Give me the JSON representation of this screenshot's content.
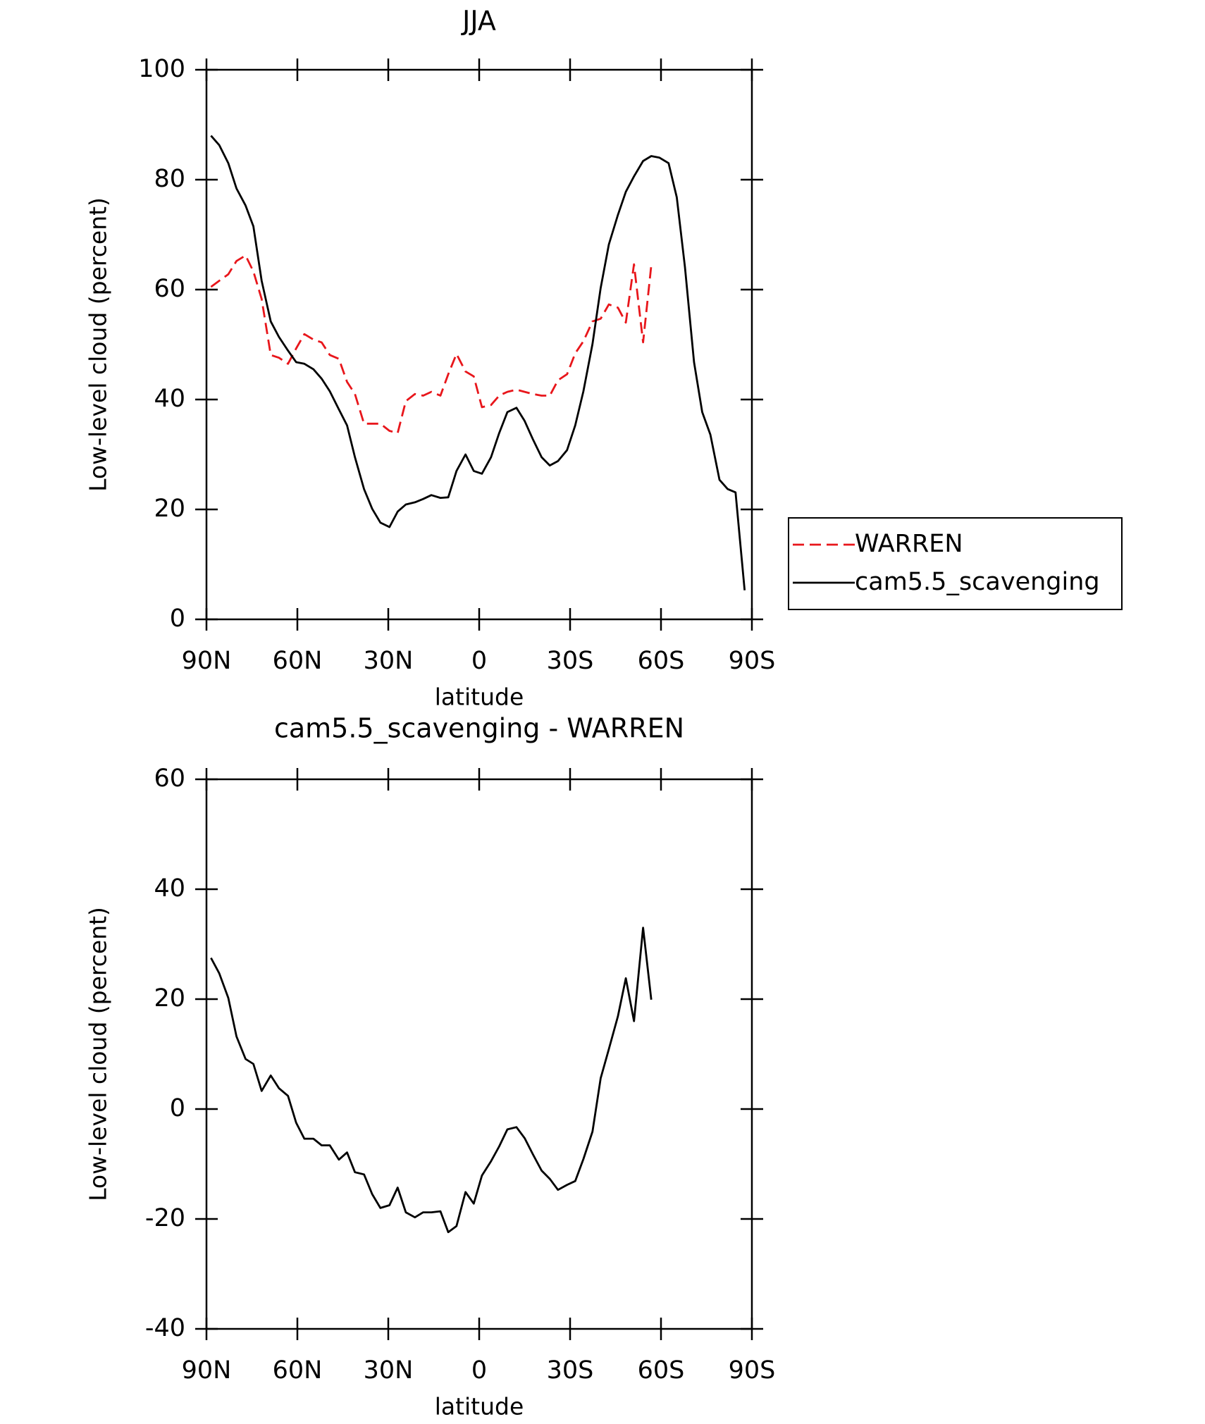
{
  "chart_data": [
    {
      "type": "line",
      "title": "JJA",
      "xlabel": "latitude",
      "ylabel": "Low-level cloud (percent)",
      "xlim": [
        90,
        -90
      ],
      "xticks": [
        {
          "value": 90,
          "label": "90N"
        },
        {
          "value": 60,
          "label": "60N"
        },
        {
          "value": 30,
          "label": "30N"
        },
        0,
        {
          "value": -30,
          "label": "30S"
        },
        {
          "value": -60,
          "label": "60S"
        },
        {
          "value": -90,
          "label": "90S"
        }
      ],
      "ylim": [
        0,
        100
      ],
      "yticks": [
        0,
        20,
        40,
        60,
        80,
        100
      ],
      "legend": "right",
      "x": [
        88.5,
        85.8,
        82.8,
        80.1,
        77.1,
        74.5,
        71.8,
        68.8,
        66.1,
        63.1,
        60.4,
        57.7,
        54.7,
        52.0,
        49.3,
        46.3,
        43.6,
        41.0,
        38.0,
        35.3,
        32.6,
        29.6,
        26.9,
        24.2,
        21.2,
        18.5,
        15.8,
        12.8,
        10.2,
        7.5,
        4.5,
        1.8,
        -0.9,
        -3.9,
        -6.6,
        -9.3,
        -12.3,
        -15.0,
        -17.7,
        -20.6,
        -23.3,
        -26.0,
        -29.0,
        -31.7,
        -34.4,
        -37.4,
        -40.1,
        -42.8,
        -45.8,
        -48.4,
        -51.1,
        -54.1,
        -56.8,
        -59.5,
        -62.5,
        -65.2,
        -67.9,
        -70.9,
        -73.6,
        -76.3,
        -79.3,
        -82.0,
        -84.6,
        -87.6
      ],
      "series": [
        {
          "name": "WARREN",
          "color": "#e8161b",
          "dashed": true,
          "values": [
            60.5,
            61.6,
            62.8,
            65.2,
            66.2,
            63.3,
            58.3,
            48.1,
            47.6,
            46.5,
            49.3,
            51.9,
            50.9,
            50.4,
            48.1,
            47.4,
            43.2,
            41.0,
            35.6,
            35.6,
            35.6,
            34.3,
            33.9,
            39.7,
            41.0,
            40.7,
            41.4,
            40.7,
            44.6,
            48.3,
            45.1,
            44.2,
            38.6,
            39.0,
            40.7,
            41.4,
            41.8,
            41.4,
            41.0,
            40.7,
            40.7,
            43.5,
            44.6,
            48.4,
            50.6,
            54.2,
            54.7,
            57.3,
            56.7,
            54.0,
            64.6,
            50.4,
            64.4,
            null,
            null,
            null,
            null,
            null,
            null,
            null,
            null,
            null,
            null,
            null
          ]
        },
        {
          "name": "cam5.5_scavenging",
          "color": "#000000",
          "dashed": false,
          "values": [
            88.0,
            86.3,
            83.0,
            78.4,
            75.3,
            71.5,
            61.6,
            54.2,
            51.4,
            48.9,
            46.8,
            46.5,
            45.5,
            43.8,
            41.5,
            38.2,
            35.3,
            29.5,
            23.7,
            20.1,
            17.6,
            16.8,
            19.6,
            20.9,
            21.3,
            21.9,
            22.6,
            22.1,
            22.2,
            27.0,
            30.0,
            27.0,
            26.5,
            29.5,
            33.9,
            37.7,
            38.5,
            36.1,
            32.8,
            29.5,
            28.0,
            28.8,
            30.8,
            35.3,
            41.5,
            50.1,
            60.3,
            68.2,
            73.6,
            77.8,
            80.6,
            83.4,
            84.3,
            84.0,
            83.0,
            76.8,
            64.1,
            46.8,
            37.7,
            33.6,
            25.4,
            23.7,
            23.1,
            5.3
          ]
        }
      ]
    },
    {
      "type": "line",
      "title": "cam5.5_scavenging - WARREN",
      "xlabel": "latitude",
      "ylabel": "Low-level cloud (percent)",
      "xlim": [
        90,
        -90
      ],
      "xticks": [
        {
          "value": 90,
          "label": "90N"
        },
        {
          "value": 60,
          "label": "60N"
        },
        {
          "value": 30,
          "label": "30N"
        },
        0,
        {
          "value": -30,
          "label": "30S"
        },
        {
          "value": -60,
          "label": "60S"
        },
        {
          "value": -90,
          "label": "90S"
        }
      ],
      "ylim": [
        -40,
        60
      ],
      "yticks": [
        -40,
        -20,
        0,
        20,
        40,
        60
      ],
      "x": [
        88.5,
        85.8,
        82.8,
        80.1,
        77.1,
        74.5,
        71.8,
        68.8,
        66.1,
        63.1,
        60.4,
        57.7,
        54.7,
        52.0,
        49.3,
        46.3,
        43.6,
        41.0,
        38.0,
        35.3,
        32.6,
        29.6,
        26.9,
        24.2,
        21.2,
        18.5,
        15.8,
        12.8,
        10.2,
        7.5,
        4.5,
        1.8,
        -0.9,
        -3.9,
        -6.6,
        -9.3,
        -12.3,
        -15.0,
        -17.7,
        -20.6,
        -23.3,
        -26.0,
        -29.0,
        -31.7,
        -34.4,
        -37.4,
        -40.1,
        -42.8,
        -45.8,
        -48.4,
        -51.1,
        -54.1,
        -56.8,
        -59.5,
        -62.5,
        -65.2,
        -67.9,
        -70.9,
        -73.6,
        -76.3,
        -79.3,
        -82.0,
        -84.6,
        -87.6
      ],
      "series": [
        {
          "color": "#000000",
          "dashed": false,
          "values": [
            27.5,
            24.7,
            20.2,
            13.2,
            9.1,
            8.2,
            3.3,
            6.1,
            3.8,
            2.4,
            -2.5,
            -5.4,
            -5.4,
            -6.6,
            -6.6,
            -9.2,
            -7.9,
            -11.5,
            -11.9,
            -15.5,
            -18.0,
            -17.5,
            -14.3,
            -18.8,
            -19.7,
            -18.8,
            -18.8,
            -18.6,
            -22.4,
            -21.3,
            -15.1,
            -17.2,
            -12.1,
            -9.5,
            -6.8,
            -3.7,
            -3.3,
            -5.3,
            -8.2,
            -11.2,
            -12.7,
            -14.7,
            -13.8,
            -13.1,
            -9.1,
            -4.1,
            5.6,
            10.9,
            16.9,
            23.8,
            16.0,
            33.0,
            19.9,
            null,
            null,
            null,
            null,
            null,
            null,
            null,
            null,
            null,
            null,
            null
          ]
        }
      ]
    }
  ]
}
